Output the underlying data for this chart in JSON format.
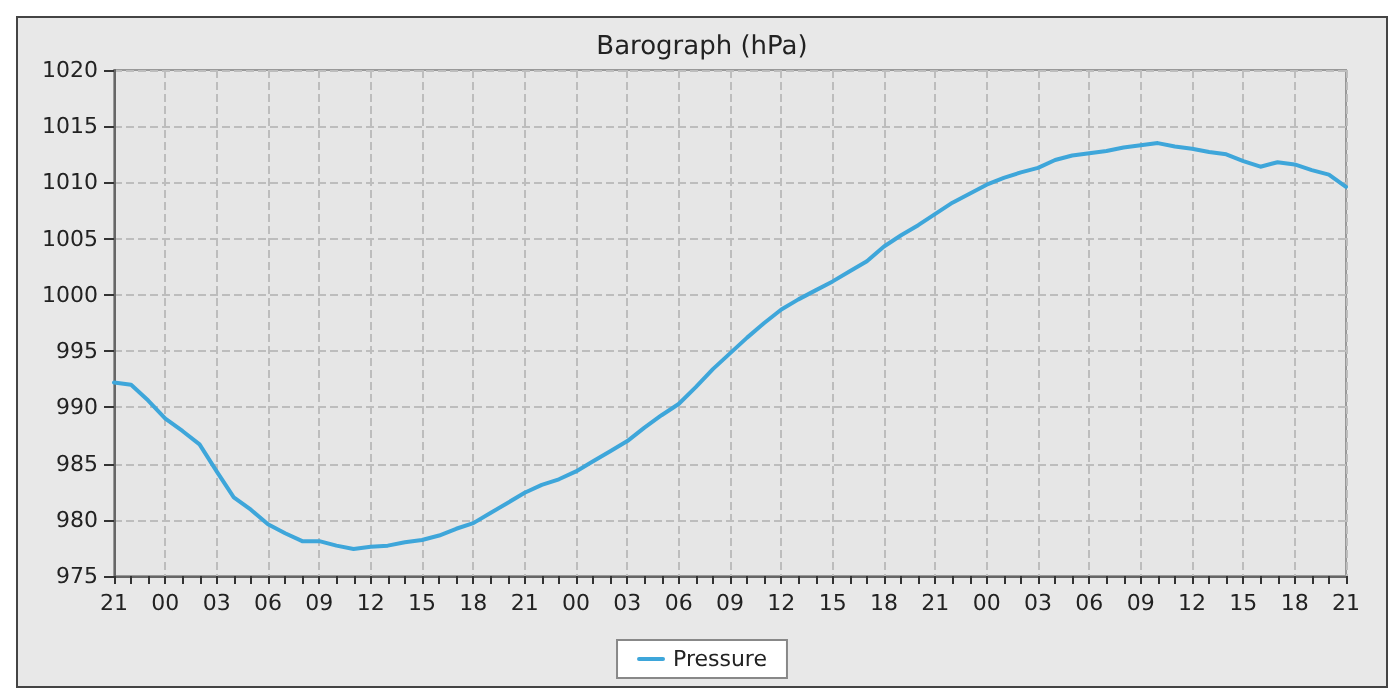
{
  "chart_data": {
    "type": "line",
    "title": "Barograph (hPa)",
    "categories": [
      "21",
      null,
      null,
      "00",
      null,
      null,
      "03",
      null,
      null,
      "06",
      null,
      null,
      "09",
      null,
      null,
      "12",
      null,
      null,
      "15",
      null,
      null,
      "18",
      null,
      null,
      "21",
      null,
      null,
      "00",
      null,
      null,
      "03",
      null,
      null,
      "06",
      null,
      null,
      "09",
      null,
      null,
      "12",
      null,
      null,
      "15",
      null,
      null,
      "18",
      null,
      null,
      "21",
      null,
      null,
      "00",
      null,
      null,
      "03",
      null,
      null,
      "06",
      null,
      null,
      "09",
      null,
      null,
      "12",
      null,
      null,
      "15",
      null,
      null,
      "18",
      null,
      null,
      "21"
    ],
    "series": [
      {
        "name": "Pressure",
        "color": "#3ea6da",
        "values": [
          992.2,
          992.0,
          990.6,
          989.0,
          987.9,
          986.7,
          984.3,
          982.0,
          980.9,
          979.6,
          978.8,
          978.1,
          978.1,
          977.7,
          977.4,
          977.6,
          977.7,
          978.0,
          978.2,
          978.6,
          979.2,
          979.7,
          980.6,
          981.5,
          982.4,
          983.1,
          983.6,
          984.3,
          985.2,
          986.1,
          987.0,
          988.2,
          989.3,
          990.3,
          991.8,
          993.4,
          994.8,
          996.2,
          997.5,
          998.7,
          999.6,
          1000.4,
          1001.2,
          1002.1,
          1003.0,
          1004.3,
          1005.3,
          1006.2,
          1007.2,
          1008.2,
          1009.0,
          1009.8,
          1010.4,
          1010.9,
          1011.3,
          1012.0,
          1012.4,
          1012.6,
          1012.8,
          1013.1,
          1013.3,
          1013.5,
          1013.2,
          1013.0,
          1012.7,
          1012.5,
          1011.9,
          1011.4,
          1011.8,
          1011.6,
          1011.1,
          1010.7,
          1009.6
        ]
      }
    ],
    "ylim": [
      975,
      1020
    ],
    "yticks": [
      975,
      980,
      985,
      990,
      995,
      1000,
      1005,
      1010,
      1015,
      1020
    ],
    "grid": true,
    "legend": "bottom",
    "marker": "none",
    "line_style": "solid"
  }
}
